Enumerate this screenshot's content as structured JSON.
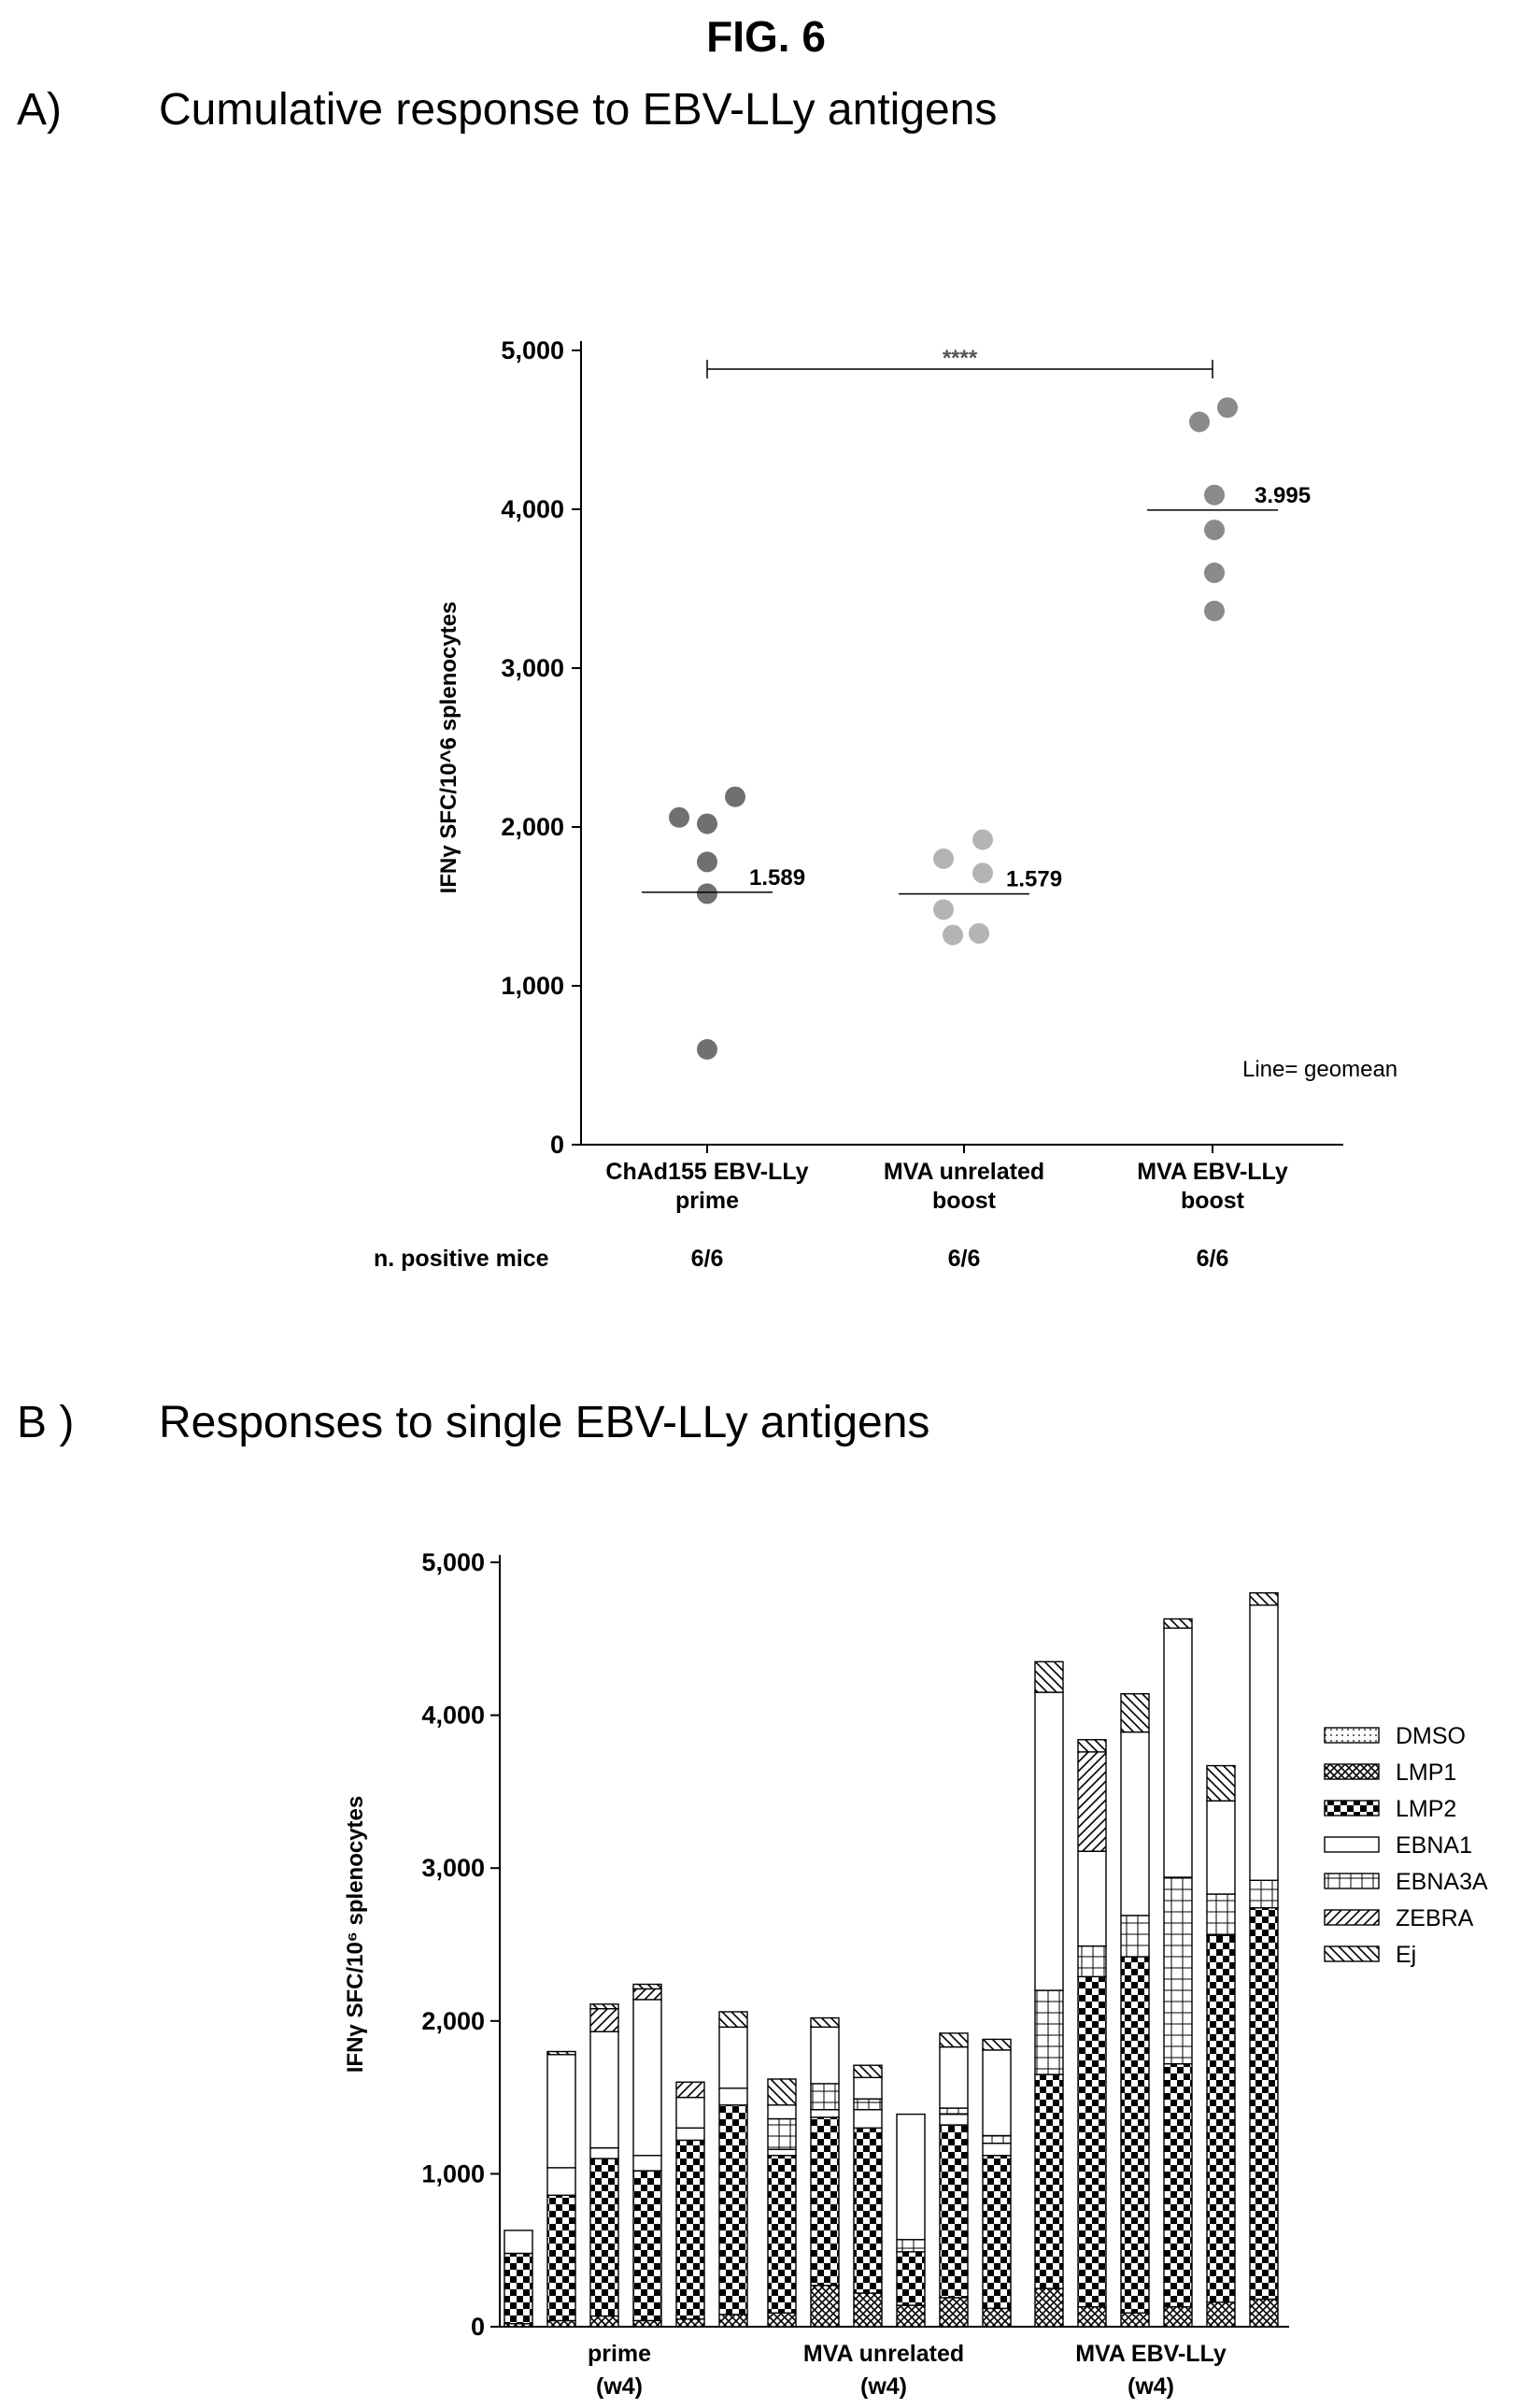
{
  "figure": {
    "title": "FIG. 6"
  },
  "panel_a": {
    "letter": "A)",
    "title": "Cumulative response to EBV-LLy antigens"
  },
  "panel_b": {
    "letter": "B )",
    "title": "Responses to single EBV-LLy antigens"
  },
  "chart_data": [
    {
      "type": "scatter",
      "ylabel": "IFNγ SFC/10^6 splenocytes",
      "ylim": [
        0,
        5000
      ],
      "yticks": [
        0,
        1000,
        2000,
        3000,
        4000,
        5000
      ],
      "ytick_labels": [
        "0",
        "1,000",
        "2,000",
        "3,000",
        "4,000",
        "5,000"
      ],
      "groups": [
        {
          "label_line1": "ChAd155 EBV-LLy",
          "label_line2": "prime",
          "positive": "6/6",
          "values": [
            2060,
            2020,
            2190,
            1780,
            1580,
            600
          ],
          "geomean": 1589,
          "geomean_label": "1.589",
          "color": "#707070"
        },
        {
          "label_line1": "MVA unrelated",
          "label_line2": "boost",
          "positive": "6/6",
          "values": [
            1920,
            1800,
            1710,
            1480,
            1320,
            1330
          ],
          "geomean": 1579,
          "geomean_label": "1.579",
          "color": "#b4b4b4"
        },
        {
          "label_line1": "MVA EBV-LLy",
          "label_line2": "boost",
          "positive": "6/6",
          "values": [
            4550,
            4640,
            4090,
            3870,
            3600,
            3360
          ],
          "geomean": 3995,
          "geomean_label": "3.995",
          "color": "#8a8a8a"
        }
      ],
      "positive_label": "n. positive mice",
      "significance": "****",
      "note": "Line= geomean"
    },
    {
      "type": "bar",
      "stacked": true,
      "ylabel": "IFNγ SFC/10⁶ splenocytes",
      "ylim": [
        0,
        5000
      ],
      "yticks": [
        0,
        1000,
        2000,
        3000,
        4000,
        5000
      ],
      "ytick_labels": [
        "0",
        "1,000",
        "2,000",
        "3,000",
        "4,000",
        "5,000"
      ],
      "groups": [
        {
          "label_line1": "prime",
          "label_line2": "(w4)"
        },
        {
          "label_line1": "MVA unrelated",
          "label_line2": "(w4)"
        },
        {
          "label_line1": "MVA EBV-LLy",
          "label_line2": "(w4)"
        }
      ],
      "series": [
        {
          "name": "DMSO",
          "pattern": "dmso",
          "values": [
            0,
            0,
            0,
            0,
            0,
            0,
            0,
            0,
            0,
            0,
            0,
            0,
            0,
            0,
            0,
            0,
            0,
            0
          ]
        },
        {
          "name": "LMP1",
          "pattern": "lmp1",
          "values": [
            20,
            40,
            70,
            40,
            50,
            80,
            90,
            270,
            220,
            140,
            190,
            120,
            250,
            130,
            90,
            130,
            160,
            180
          ]
        },
        {
          "name": "LMP2",
          "pattern": "lmp2",
          "values": [
            460,
            820,
            1030,
            980,
            1170,
            1370,
            1030,
            1100,
            1080,
            350,
            1130,
            1000,
            1400,
            2160,
            2330,
            1590,
            2400,
            2560
          ]
        },
        {
          "name": "EBNA1",
          "pattern": "ebna1",
          "values": [
            150,
            180,
            70,
            100,
            80,
            110,
            40,
            50,
            120,
            0,
            70,
            80,
            0,
            0,
            0,
            0,
            0,
            0
          ]
        },
        {
          "name": "EBNA3A",
          "pattern": "ebna3a",
          "values": [
            0,
            0,
            0,
            0,
            0,
            0,
            200,
            170,
            70,
            80,
            40,
            50,
            550,
            200,
            270,
            1220,
            270,
            180
          ]
        },
        {
          "name": "EBNA1",
          "pattern": "ebna1",
          "values": [
            0,
            740,
            760,
            1020,
            200,
            400,
            90,
            370,
            140,
            820,
            400,
            560,
            1950,
            620,
            1200,
            1630,
            610,
            1800
          ]
        },
        {
          "name": "ZEBRA",
          "pattern": "zebra",
          "values": [
            0,
            0,
            150,
            70,
            100,
            0,
            0,
            0,
            0,
            0,
            0,
            0,
            0,
            650,
            0,
            0,
            0,
            0
          ]
        },
        {
          "name": "Ej",
          "pattern": "ej",
          "values": [
            0,
            20,
            30,
            30,
            0,
            100,
            170,
            60,
            80,
            0,
            90,
            70,
            200,
            80,
            250,
            60,
            230,
            80
          ]
        }
      ],
      "legend": [
        "DMSO",
        "LMP1",
        "LMP2",
        "EBNA1",
        "EBNA3A",
        "ZEBRA",
        "Ej"
      ],
      "legend_patterns": [
        "dmso",
        "lmp1",
        "lmp2",
        "ebna1",
        "ebna3a",
        "zebra",
        "ej"
      ]
    }
  ]
}
